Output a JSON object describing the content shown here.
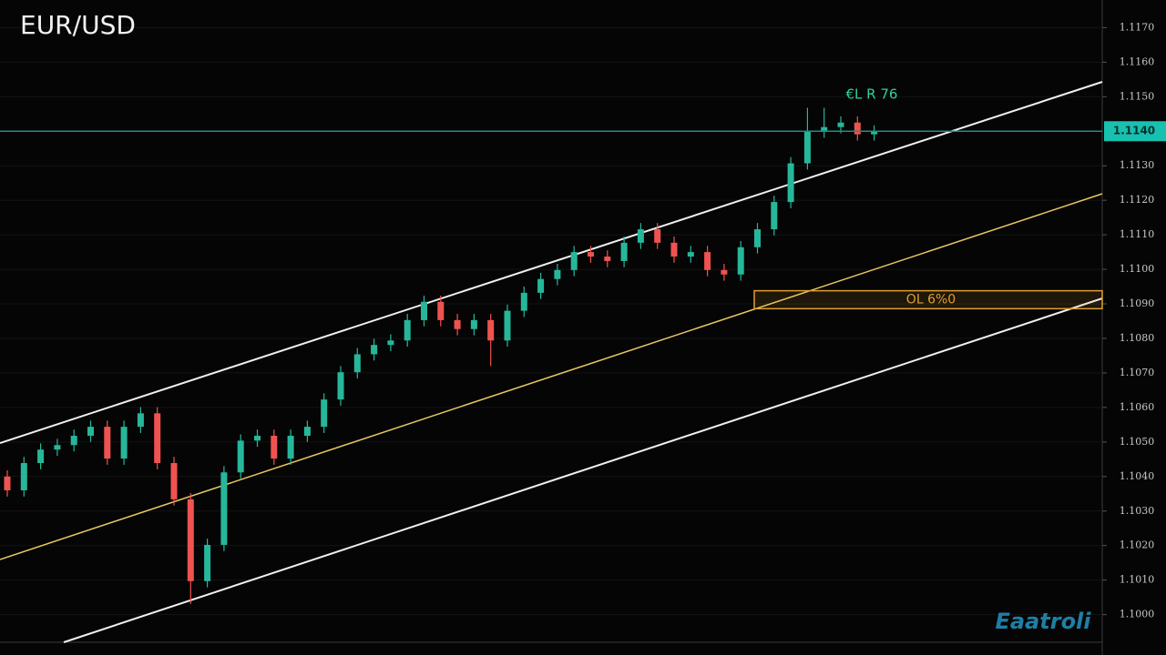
{
  "chart_data": {
    "type": "candlestick",
    "title": "EUR/USD",
    "watermark": "Eaatroli",
    "annotations": [
      {
        "text": "€L R 76"
      }
    ],
    "zone": {
      "label": "OL 6%0",
      "range": [
        1.10938,
        1.10886
      ],
      "color": "#e0a030"
    },
    "last_price": {
      "value": 1.114,
      "label": "1.1140"
    },
    "up_color": "#26b79a",
    "down_color": "#ef5350",
    "ylim": [
      1.0992,
      1.1178
    ],
    "yticks": [
      {
        "value": 1.117,
        "label": "1.1170"
      },
      {
        "value": 1.116,
        "label": "1.1160"
      },
      {
        "value": 1.115,
        "label": "1.1150"
      },
      {
        "value": 1.113,
        "label": "1.1130"
      },
      {
        "value": 1.112,
        "label": "1.1120"
      },
      {
        "value": 1.111,
        "label": "1.1110"
      },
      {
        "value": 1.11,
        "label": "1.1100"
      },
      {
        "value": 1.109,
        "label": "1.1090"
      },
      {
        "value": 1.108,
        "label": "1.1080"
      },
      {
        "value": 1.107,
        "label": "1.1070"
      },
      {
        "value": 1.106,
        "label": "1.1060"
      },
      {
        "value": 1.105,
        "label": "1.1050"
      },
      {
        "value": 1.104,
        "label": "1.1040"
      },
      {
        "value": 1.103,
        "label": "1.1030"
      },
      {
        "value": 1.102,
        "label": "1.1020"
      },
      {
        "value": 1.101,
        "label": "1.1010"
      },
      {
        "value": 1.1,
        "label": "1.1000"
      }
    ],
    "open": [
      1.104,
      1.1036,
      1.10439,
      1.10478,
      1.10491,
      1.10518,
      1.10544,
      1.10452,
      1.10544,
      1.10583,
      1.10439,
      1.10334,
      1.10097,
      1.10202,
      1.10412,
      1.10504,
      1.10518,
      1.10452,
      1.10518,
      1.10544,
      1.10623,
      1.10702,
      1.10754,
      1.10781,
      1.10794,
      1.10853,
      1.10906,
      1.10853,
      1.10827,
      1.10853,
      1.10794,
      1.1088,
      1.10932,
      1.10972,
      1.10998,
      1.1105,
      1.11037,
      1.11024,
      1.11077,
      1.11116,
      1.11077,
      1.11037,
      1.1105,
      1.10998,
      1.10985,
      1.11064,
      1.11116,
      1.11195,
      1.11307,
      1.11399,
      1.11412,
      1.11425,
      1.11391
    ],
    "high": [
      1.10418,
      1.10457,
      1.10496,
      1.10509,
      1.10536,
      1.10562,
      1.10562,
      1.10562,
      1.10601,
      1.10601,
      1.10457,
      1.10352,
      1.1022,
      1.1043,
      1.10522,
      1.10536,
      1.10536,
      1.10536,
      1.10562,
      1.10641,
      1.1072,
      1.10772,
      1.10799,
      1.10812,
      1.10871,
      1.10924,
      1.10924,
      1.10871,
      1.10871,
      1.10871,
      1.10898,
      1.1095,
      1.1099,
      1.11016,
      1.11068,
      1.11068,
      1.11055,
      1.11095,
      1.11134,
      1.11134,
      1.11095,
      1.11068,
      1.11068,
      1.11016,
      1.11082,
      1.11134,
      1.11213,
      1.11325,
      1.11468,
      1.11468,
      1.11443,
      1.11443,
      1.11417
    ],
    "low": [
      1.10342,
      1.10342,
      1.10421,
      1.1046,
      1.10473,
      1.105,
      1.10434,
      1.10434,
      1.10526,
      1.10421,
      1.10316,
      1.10031,
      1.10079,
      1.10184,
      1.10394,
      1.10486,
      1.10434,
      1.10434,
      1.105,
      1.10526,
      1.10605,
      1.10684,
      1.10736,
      1.10763,
      1.10776,
      1.10835,
      1.10835,
      1.10809,
      1.10809,
      1.1072,
      1.10776,
      1.10862,
      1.10914,
      1.10954,
      1.1098,
      1.11019,
      1.11006,
      1.11006,
      1.11059,
      1.11059,
      1.11019,
      1.11019,
      1.1098,
      1.10967,
      1.10967,
      1.11046,
      1.11098,
      1.11177,
      1.11289,
      1.11381,
      1.11394,
      1.11373,
      1.11373
    ],
    "close": [
      1.1036,
      1.10439,
      1.10478,
      1.10491,
      1.10518,
      1.10544,
      1.10452,
      1.10544,
      1.10583,
      1.10439,
      1.10334,
      1.10097,
      1.10202,
      1.10412,
      1.10504,
      1.10518,
      1.10452,
      1.10518,
      1.10544,
      1.10623,
      1.10702,
      1.10754,
      1.10781,
      1.10794,
      1.10853,
      1.10906,
      1.10853,
      1.10827,
      1.10853,
      1.10794,
      1.1088,
      1.10932,
      1.10972,
      1.10998,
      1.1105,
      1.11037,
      1.11024,
      1.11077,
      1.11116,
      1.11077,
      1.11037,
      1.1105,
      1.10998,
      1.10985,
      1.11064,
      1.11116,
      1.11195,
      1.11307,
      1.11399,
      1.11412,
      1.11425,
      1.11391,
      1.11399
    ]
  }
}
